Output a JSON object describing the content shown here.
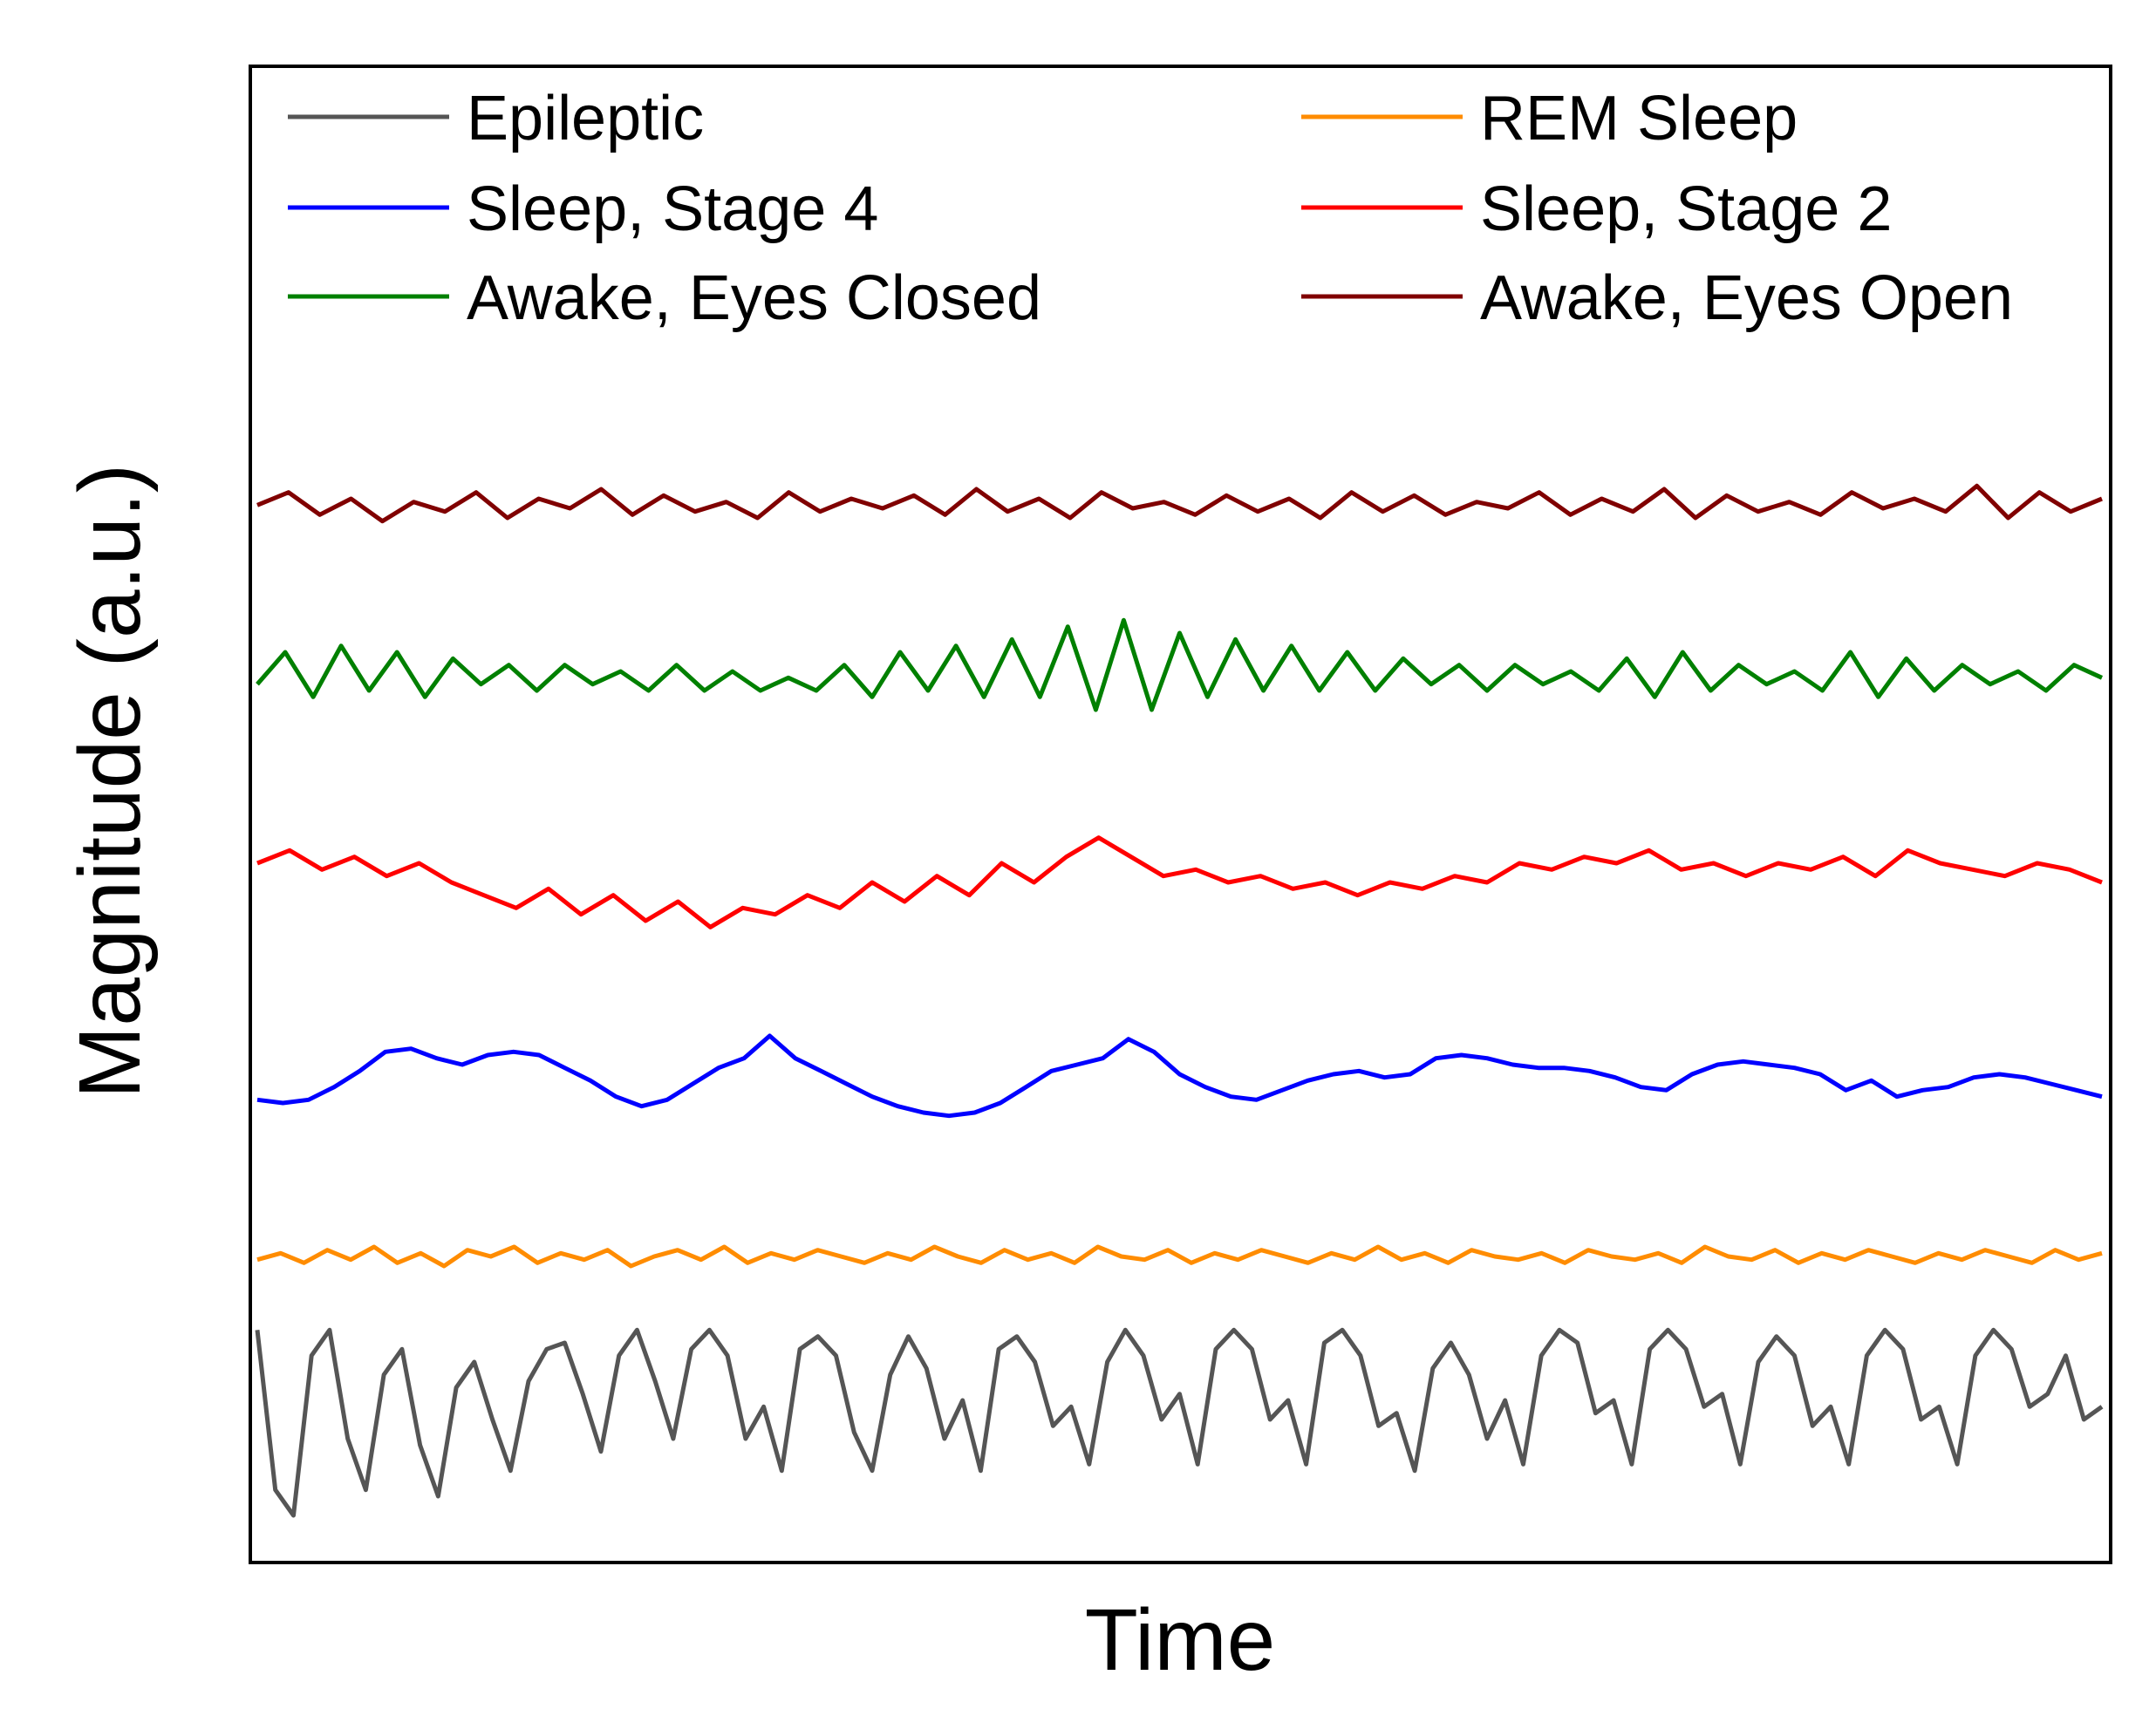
{
  "chart_data": {
    "type": "line",
    "xlabel": "Time",
    "ylabel": "Magnitude (a.u.)",
    "ticks": "none",
    "legend_position": "top",
    "legend_columns": 2,
    "x_range": [
      0,
      100
    ],
    "y_range": [
      0,
      100
    ],
    "series": [
      {
        "name": "Epileptic",
        "color": "#555555",
        "values": [
          64,
          14,
          6,
          56,
          64,
          30,
          14,
          50,
          58,
          28,
          12,
          46,
          54,
          36,
          20,
          48,
          58,
          60,
          44,
          26,
          56,
          64,
          48,
          30,
          58,
          64,
          56,
          30,
          40,
          20,
          58,
          62,
          56,
          32,
          20,
          50,
          62,
          52,
          30,
          42,
          20,
          58,
          62,
          54,
          34,
          40,
          22,
          54,
          64,
          56,
          36,
          44,
          22,
          58,
          64,
          58,
          36,
          42,
          22,
          60,
          64,
          56,
          34,
          38,
          20,
          52,
          60,
          50,
          30,
          42,
          22,
          56,
          64,
          60,
          38,
          42,
          22,
          58,
          64,
          58,
          40,
          44,
          22,
          54,
          62,
          56,
          34,
          40,
          22,
          56,
          64,
          58,
          36,
          40,
          22,
          56,
          64,
          58,
          40,
          44,
          56,
          36,
          40
        ]
      },
      {
        "name": "REM Sleep",
        "color": "#ff8c00",
        "values": [
          86,
          88,
          85,
          89,
          86,
          90,
          85,
          88,
          84,
          89,
          87,
          90,
          85,
          88,
          86,
          89,
          84,
          87,
          89,
          86,
          90,
          85,
          88,
          86,
          89,
          87,
          85,
          88,
          86,
          90,
          87,
          85,
          89,
          86,
          88,
          85,
          90,
          87,
          86,
          89,
          85,
          88,
          86,
          89,
          87,
          85,
          88,
          86,
          90,
          86,
          88,
          85,
          89,
          87,
          86,
          88,
          85,
          89,
          87,
          86,
          88,
          85,
          90,
          87,
          86,
          89,
          85,
          88,
          86,
          89,
          87,
          85,
          88,
          86,
          89,
          87,
          85,
          89,
          86,
          88
        ]
      },
      {
        "name": "Sleep, Stage 4",
        "color": "#0000ff",
        "values": [
          136,
          135,
          136,
          140,
          145,
          151,
          152,
          149,
          147,
          150,
          151,
          150,
          146,
          142,
          137,
          134,
          136,
          141,
          146,
          149,
          156,
          149,
          145,
          141,
          137,
          134,
          132,
          131,
          132,
          135,
          140,
          145,
          147,
          149,
          155,
          151,
          144,
          140,
          137,
          136,
          139,
          142,
          144,
          145,
          143,
          144,
          149,
          150,
          149,
          147,
          146,
          146,
          145,
          143,
          140,
          139,
          144,
          147,
          148,
          147,
          146,
          144,
          139,
          142,
          137,
          139,
          140,
          143,
          144,
          143,
          141,
          139,
          137
        ]
      },
      {
        "name": "Sleep, Stage 2",
        "color": "#ff0000",
        "values": [
          210,
          214,
          208,
          212,
          206,
          210,
          204,
          200,
          196,
          202,
          194,
          200,
          192,
          198,
          190,
          196,
          194,
          200,
          196,
          204,
          198,
          206,
          200,
          210,
          204,
          212,
          218,
          212,
          206,
          208,
          204,
          206,
          202,
          204,
          200,
          204,
          202,
          206,
          204,
          210,
          208,
          212,
          210,
          214,
          208,
          210,
          206,
          210,
          208,
          212,
          206,
          214,
          210,
          208,
          206,
          210,
          208,
          204
        ]
      },
      {
        "name": "Awake, Eyes Closed",
        "color": "#008000",
        "values": [
          266,
          276,
          262,
          278,
          264,
          276,
          262,
          274,
          266,
          272,
          264,
          272,
          266,
          270,
          264,
          272,
          264,
          270,
          264,
          268,
          264,
          272,
          262,
          276,
          264,
          278,
          262,
          280,
          262,
          284,
          258,
          286,
          258,
          282,
          262,
          280,
          264,
          278,
          264,
          276,
          264,
          274,
          266,
          272,
          264,
          272,
          266,
          270,
          264,
          274,
          262,
          276,
          264,
          272,
          266,
          270,
          264,
          276,
          262,
          274,
          264,
          272,
          266,
          270,
          264,
          272,
          268
        ]
      },
      {
        "name": "Awake, Eyes Open",
        "color": "#800000",
        "values": [
          322,
          326,
          319,
          324,
          317,
          323,
          320,
          326,
          318,
          324,
          321,
          327,
          319,
          325,
          320,
          323,
          318,
          326,
          320,
          324,
          321,
          325,
          319,
          327,
          320,
          324,
          318,
          326,
          321,
          323,
          319,
          325,
          320,
          324,
          318,
          326,
          320,
          325,
          319,
          323,
          321,
          326,
          319,
          324,
          320,
          327,
          318,
          325,
          320,
          323,
          319,
          326,
          321,
          324,
          320,
          328,
          318,
          326,
          320,
          324
        ]
      }
    ]
  }
}
